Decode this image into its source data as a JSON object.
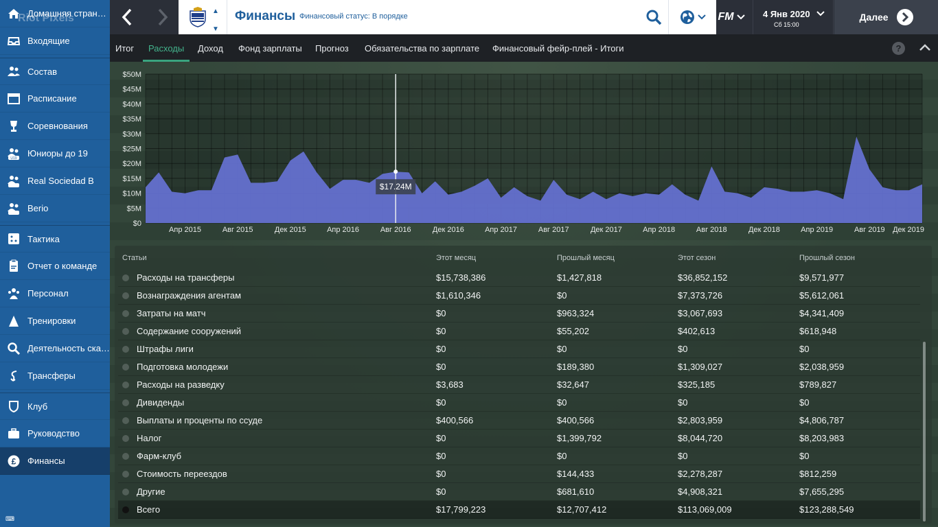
{
  "sidebar": {
    "watermark": "Riot Pixels",
    "items": [
      {
        "label": "Домашняя страница",
        "icon": "home-icon"
      },
      {
        "label": "Входящие",
        "icon": "inbox-icon"
      },
      {
        "label": "Состав",
        "icon": "squad-icon"
      },
      {
        "label": "Расписание",
        "icon": "calendar-icon"
      },
      {
        "label": "Соревнования",
        "icon": "trophy-icon"
      },
      {
        "label": "Юниоры до 19",
        "icon": "youth-team-icon"
      },
      {
        "label": "Real Sociedad B",
        "icon": "b-team-icon"
      },
      {
        "label": "Berio",
        "icon": "affiliate-team-icon"
      },
      {
        "label": "Тактика",
        "icon": "tactics-icon"
      },
      {
        "label": "Отчет о команде",
        "icon": "report-icon"
      },
      {
        "label": "Персонал",
        "icon": "staff-icon"
      },
      {
        "label": "Тренировки",
        "icon": "training-icon"
      },
      {
        "label": "Деятельность скаутов",
        "icon": "scouting-search-icon"
      },
      {
        "label": "Трансферы",
        "icon": "transfers-icon"
      },
      {
        "label": "Клуб",
        "icon": "club-shield-icon"
      },
      {
        "label": "Руководство",
        "icon": "briefcase-icon"
      },
      {
        "label": "Финансы",
        "icon": "pound-icon"
      }
    ],
    "active_index": 16
  },
  "topbar": {
    "back_icon": "chevron-left-icon",
    "forward_icon": "chevron-right-icon",
    "title": "Финансы",
    "status": "Финансовый статус: В порядке",
    "fm_label": "FM",
    "date": "4 Янв 2020",
    "date_sub": "Сб 15:00",
    "continue_label": "Далее"
  },
  "tabs": [
    "Итог",
    "Расходы",
    "Доход",
    "Фонд зарплаты",
    "Прогноз",
    "Обязательства по зарплате",
    "Финансовый фейр-плей - Итоги"
  ],
  "active_tab": 1,
  "help_label": "?",
  "chart_data": {
    "type": "area",
    "series": [
      {
        "values": [
          12,
          17,
          10.5,
          10,
          11,
          11,
          22,
          23,
          13.5,
          13.5,
          14,
          21,
          24,
          17,
          11.5,
          14.5,
          14.5,
          13.5,
          16.5,
          17.24,
          17,
          10,
          14,
          9.5,
          10.5,
          12.5,
          15,
          8.5,
          12,
          9,
          7.5,
          14.5,
          9.5,
          8,
          10.5,
          8,
          10,
          9,
          10,
          9.5,
          13,
          9.5,
          7.5,
          19,
          10.5,
          10,
          8.5,
          12,
          11.5,
          10.5,
          10.5,
          11,
          10,
          8,
          29,
          18,
          12,
          11,
          11,
          13
        ]
      }
    ],
    "color": "#6672d4",
    "ylim": [
      0,
      50
    ],
    "yticks": [
      "$0",
      "$5M",
      "$10M",
      "$15M",
      "$20M",
      "$25M",
      "$30M",
      "$35M",
      "$40M",
      "$45M",
      "$50M"
    ],
    "xticks": [
      {
        "label": "Апр 2015",
        "index": 3
      },
      {
        "label": "Авг 2015",
        "index": 7
      },
      {
        "label": "Дек 2015",
        "index": 11
      },
      {
        "label": "Апр 2016",
        "index": 15
      },
      {
        "label": "Авг 2016",
        "index": 19
      },
      {
        "label": "Дек 2016",
        "index": 23
      },
      {
        "label": "Апр 2017",
        "index": 27
      },
      {
        "label": "Авг 2017",
        "index": 31
      },
      {
        "label": "Дек 2017",
        "index": 35
      },
      {
        "label": "Апр 2018",
        "index": 39
      },
      {
        "label": "Авг 2018",
        "index": 43
      },
      {
        "label": "Дек 2018",
        "index": 47
      },
      {
        "label": "Апр 2019",
        "index": 51
      },
      {
        "label": "Авг 2019",
        "index": 55
      },
      {
        "label": "Дек 2019",
        "index": 59
      }
    ],
    "tooltip": {
      "index": 19,
      "label": "$17.24M"
    },
    "grid": true
  },
  "table": {
    "headers": [
      "Статьи",
      "Этот месяц",
      "Прошлый месяц",
      "Этот сезон",
      "Прошлый сезон"
    ],
    "rows": [
      [
        "Расходы на трансферы",
        "$15,738,386",
        "$1,427,818",
        "$36,852,152",
        "$9,571,977"
      ],
      [
        "Вознаграждения агентам",
        "$1,610,346",
        "$0",
        "$7,373,726",
        "$5,612,061"
      ],
      [
        "Затраты на матч",
        "$0",
        "$963,324",
        "$3,067,693",
        "$4,341,409"
      ],
      [
        "Содержание сооружений",
        "$0",
        "$55,202",
        "$402,613",
        "$618,948"
      ],
      [
        "Штрафы лиги",
        "$0",
        "$0",
        "$0",
        "$0"
      ],
      [
        "Подготовка молодежи",
        "$0",
        "$189,380",
        "$1,309,027",
        "$2,038,959"
      ],
      [
        "Расходы на разведку",
        "$3,683",
        "$32,647",
        "$325,185",
        "$789,827"
      ],
      [
        "Дивиденды",
        "$0",
        "$0",
        "$0",
        "$0"
      ],
      [
        "Выплаты и проценты по ссуде",
        "$400,566",
        "$400,566",
        "$2,803,959",
        "$4,806,787"
      ],
      [
        "Налог",
        "$0",
        "$1,399,792",
        "$8,044,720",
        "$8,203,983"
      ],
      [
        "Фарм-клуб",
        "$0",
        "$0",
        "$0",
        "$0"
      ],
      [
        "Стоимость переездов",
        "$0",
        "$144,433",
        "$2,278,287",
        "$812,259"
      ],
      [
        "Другие",
        "$0",
        "$681,610",
        "$4,908,321",
        "$7,655,295"
      ]
    ],
    "total": [
      "Всего",
      "$17,799,223",
      "$12,707,412",
      "$113,069,009",
      "$123,288,549"
    ]
  }
}
